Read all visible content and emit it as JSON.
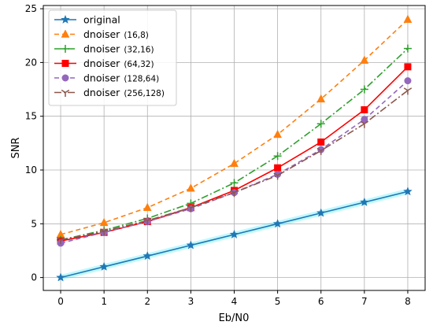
{
  "chart_data": {
    "type": "line",
    "title": "",
    "xlabel": "Eb/N0",
    "ylabel": "SNR",
    "x": [
      0,
      1,
      2,
      3,
      4,
      5,
      6,
      7,
      8
    ],
    "xlim": [
      -0.4,
      8.4
    ],
    "ylim": [
      -1.2,
      25.3
    ],
    "xticks": [
      0,
      1,
      2,
      3,
      4,
      5,
      6,
      7,
      8
    ],
    "yticks": [
      0,
      5,
      10,
      15,
      20,
      25
    ],
    "grid": true,
    "legend_position": "top-left",
    "series": [
      {
        "name": "original",
        "legend_main": "original",
        "legend_suffix": "",
        "color": "#1f77b4",
        "dash": "",
        "marker": "star",
        "glow": true,
        "values": [
          0,
          1,
          2,
          3,
          4,
          5,
          6,
          7,
          8
        ]
      },
      {
        "name": "dnoiser (16,8)",
        "legend_main": "dnoiser",
        "legend_suffix": "(16,8)",
        "color": "#ff7f0e",
        "dash": "6,4",
        "marker": "triangle",
        "glow": false,
        "values": [
          4.0,
          5.1,
          6.5,
          8.3,
          10.6,
          13.3,
          16.6,
          20.2,
          24.0
        ]
      },
      {
        "name": "dnoiser (32,16)",
        "legend_main": "dnoiser",
        "legend_suffix": "(32,16)",
        "color": "#2ca02c",
        "dash": "9,3,2,3",
        "marker": "plus",
        "glow": false,
        "values": [
          3.5,
          4.4,
          5.5,
          6.9,
          8.8,
          11.3,
          14.3,
          17.5,
          21.3
        ]
      },
      {
        "name": "dnoiser (64,32)",
        "legend_main": "dnoiser",
        "legend_suffix": "(64,32)",
        "color": "#ff0000",
        "dash": "",
        "marker": "square",
        "glow": false,
        "values": [
          3.4,
          4.2,
          5.2,
          6.5,
          8.1,
          10.2,
          12.6,
          15.6,
          19.6
        ]
      },
      {
        "name": "dnoiser (128,64)",
        "legend_main": "dnoiser",
        "legend_suffix": "(128,64)",
        "color": "#9467bd",
        "dash": "6,4",
        "marker": "circle",
        "glow": false,
        "values": [
          3.2,
          4.2,
          5.2,
          6.4,
          7.9,
          9.6,
          11.9,
          14.7,
          18.3
        ]
      },
      {
        "name": "dnoiser (256,128)",
        "legend_main": "dnoiser",
        "legend_suffix": "(256,128)",
        "color": "#8c564b",
        "dash": "9,3,2,3",
        "marker": "tri_down",
        "glow": false,
        "values": [
          3.5,
          4.3,
          5.3,
          6.5,
          7.9,
          9.5,
          11.8,
          14.3,
          17.4
        ]
      }
    ]
  }
}
